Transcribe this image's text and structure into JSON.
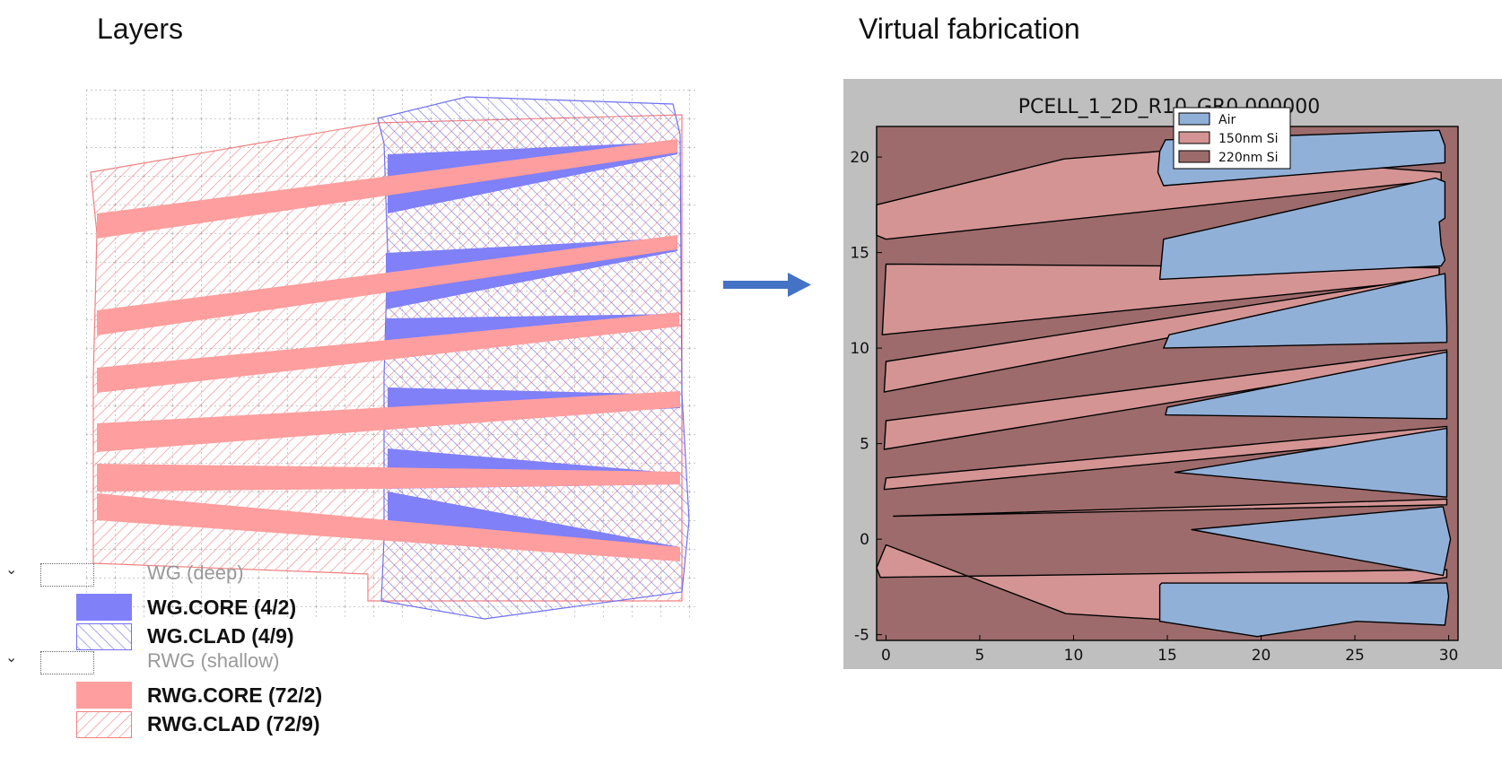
{
  "headings": {
    "left": "Layers",
    "right": "Virtual fabrication"
  },
  "colors": {
    "wg_fill": "#8080f8",
    "wg_line": "#7070ee",
    "rwg_fill": "#ff9e9e",
    "rwg_line": "#f08080",
    "sim_bg": "#bfbfbf",
    "si220": "#9d6b6b",
    "si150": "#d49494",
    "air": "#91b0d8",
    "arrow": "#4472c4"
  },
  "layer_panel": {
    "groups": [
      {
        "name": "WG (deep)",
        "layers": [
          {
            "label": "WG.CORE (4/2)",
            "style": "solid",
            "color": "#8080f8"
          },
          {
            "label": "WG.CLAD (4/9)",
            "style": "hatch",
            "color": "#7070ee"
          }
        ]
      },
      {
        "name": "RWG (shallow)",
        "layers": [
          {
            "label": "RWG.CORE (72/2)",
            "style": "solid",
            "color": "#ff9e9e"
          },
          {
            "label": "RWG.CLAD (72/9)",
            "style": "hatch",
            "color": "#f08080"
          }
        ]
      }
    ]
  },
  "chart_data": {
    "type": "area",
    "title": "PCELL_1_2D_R10_GR0.000000",
    "xlabel": "",
    "ylabel": "",
    "xlim": [
      -0.5,
      30.5
    ],
    "ylim": [
      -5.3,
      21.6
    ],
    "xticks": [
      0,
      5,
      10,
      15,
      20,
      25,
      30
    ],
    "yticks": [
      -5,
      0,
      5,
      10,
      15,
      20
    ],
    "legend": {
      "placement": "top-center",
      "entries": [
        {
          "name": "Air",
          "color": "#91b0d8"
        },
        {
          "name": "150nm Si",
          "color": "#d49494"
        },
        {
          "name": "220nm Si",
          "color": "#9d6b6b"
        }
      ]
    },
    "background_material": "220nm Si",
    "series": [
      {
        "name": "150nm Si",
        "polygons": [
          [
            [
              -0.5,
              17.5
            ],
            [
              9.5,
              19.9
            ],
            [
              14.6,
              20.3
            ],
            [
              29.6,
              19.2
            ],
            [
              29.6,
              18.8
            ],
            [
              0,
              15.7
            ],
            [
              -0.5,
              15.9
            ]
          ],
          [
            [
              0,
              14.4
            ],
            [
              29.5,
              14.2
            ],
            [
              29.5,
              13.6
            ],
            [
              -0.2,
              10.7
            ]
          ],
          [
            [
              0,
              9.3
            ],
            [
              29.8,
              13.8
            ],
            [
              29.8,
              13.3
            ],
            [
              -0.1,
              7.7
            ]
          ],
          [
            [
              0,
              6.2
            ],
            [
              29.9,
              9.9
            ],
            [
              29.9,
              9.5
            ],
            [
              -0.1,
              4.7
            ]
          ],
          [
            [
              0,
              3.2
            ],
            [
              29.9,
              5.9
            ],
            [
              29.9,
              5.4
            ],
            [
              -0.1,
              2.6
            ]
          ],
          [
            [
              0.4,
              1.2
            ],
            [
              29.9,
              2.1
            ],
            [
              29.9,
              1.8
            ]
          ],
          [
            [
              0,
              -0.3
            ],
            [
              9.6,
              -3.9
            ],
            [
              14.6,
              -4.2
            ],
            [
              29.9,
              -2.0
            ],
            [
              29.9,
              -1.6
            ],
            [
              -0.3,
              -2.0
            ],
            [
              -0.5,
              -1.5
            ]
          ]
        ]
      },
      {
        "name": "Air",
        "polygons": [
          [
            [
              14.6,
              20.3
            ],
            [
              14.9,
              20.9
            ],
            [
              29.5,
              21.4
            ],
            [
              29.8,
              20.6
            ],
            [
              29.8,
              19.7
            ],
            [
              14.8,
              18.5
            ],
            [
              14.5,
              19.2
            ]
          ],
          [
            [
              14.8,
              15.7
            ],
            [
              29.3,
              18.9
            ],
            [
              29.8,
              18.7
            ],
            [
              29.8,
              16.8
            ],
            [
              29.5,
              16.6
            ],
            [
              29.6,
              15.4
            ],
            [
              29.8,
              14.6
            ],
            [
              29.6,
              14.3
            ],
            [
              14.6,
              13.6
            ]
          ],
          [
            [
              15.1,
              10.7
            ],
            [
              29.8,
              13.9
            ],
            [
              29.9,
              11.1
            ],
            [
              29.9,
              10.3
            ],
            [
              14.8,
              10.0
            ]
          ],
          [
            [
              15.0,
              6.9
            ],
            [
              29.9,
              9.8
            ],
            [
              29.9,
              6.3
            ],
            [
              14.9,
              6.5
            ]
          ],
          [
            [
              15.4,
              3.5
            ],
            [
              29.9,
              5.8
            ],
            [
              29.9,
              2.2
            ]
          ],
          [
            [
              16.3,
              0.5
            ],
            [
              29.7,
              1.7
            ],
            [
              30.1,
              0.0
            ],
            [
              29.7,
              -1.9
            ]
          ],
          [
            [
              14.6,
              -2.4
            ],
            [
              14.7,
              -2.3
            ],
            [
              29.9,
              -2.3
            ],
            [
              30.0,
              -3.0
            ],
            [
              29.8,
              -4.5
            ],
            [
              25.1,
              -4.3
            ],
            [
              19.8,
              -5.1
            ],
            [
              14.6,
              -4.3
            ]
          ]
        ]
      }
    ]
  }
}
